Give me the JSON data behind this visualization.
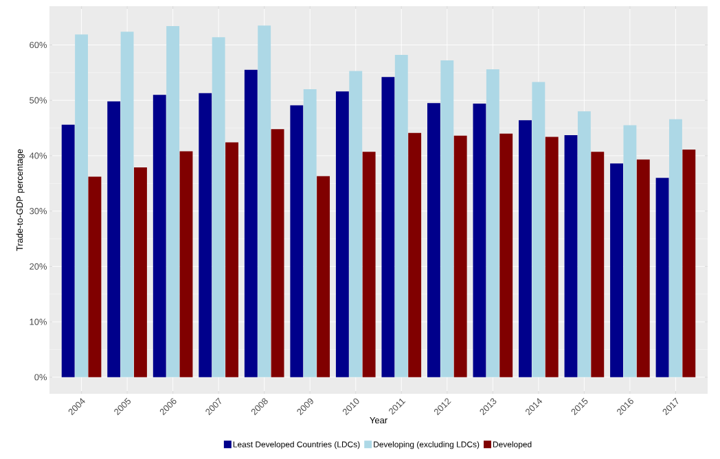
{
  "chart_data": {
    "type": "bar",
    "xlabel": "Year",
    "ylabel": "Trade-to-GDP percentage",
    "categories": [
      "2004",
      "2005",
      "2006",
      "2007",
      "2008",
      "2009",
      "2010",
      "2011",
      "2012",
      "2013",
      "2014",
      "2015",
      "2016",
      "2017"
    ],
    "series": [
      {
        "name": "Least Developed Countries (LDCs)",
        "color": "#00008b",
        "values": [
          45.6,
          49.8,
          51.0,
          51.3,
          55.5,
          49.1,
          51.6,
          54.2,
          49.5,
          49.4,
          46.4,
          43.7,
          38.6,
          36.0
        ]
      },
      {
        "name": "Developing (excluding LDCs)",
        "color": "#add8e6",
        "values": [
          61.9,
          62.4,
          63.4,
          61.4,
          63.5,
          52.0,
          55.3,
          58.2,
          57.2,
          55.6,
          53.3,
          48.0,
          45.5,
          46.6
        ]
      },
      {
        "name": "Developed",
        "color": "#800000",
        "values": [
          36.2,
          37.9,
          40.8,
          42.4,
          44.8,
          36.3,
          40.7,
          44.1,
          43.6,
          44.0,
          43.4,
          40.7,
          39.3,
          41.1
        ]
      }
    ],
    "ylim": [
      -3,
      67
    ],
    "yticks": [
      {
        "value": 0,
        "label": "0%"
      },
      {
        "value": 10,
        "label": "10%"
      },
      {
        "value": 20,
        "label": "20%"
      },
      {
        "value": 30,
        "label": "30%"
      },
      {
        "value": 40,
        "label": "40%"
      },
      {
        "value": 50,
        "label": "50%"
      },
      {
        "value": 60,
        "label": "60%"
      }
    ],
    "grid": true,
    "legend": "bottom"
  }
}
